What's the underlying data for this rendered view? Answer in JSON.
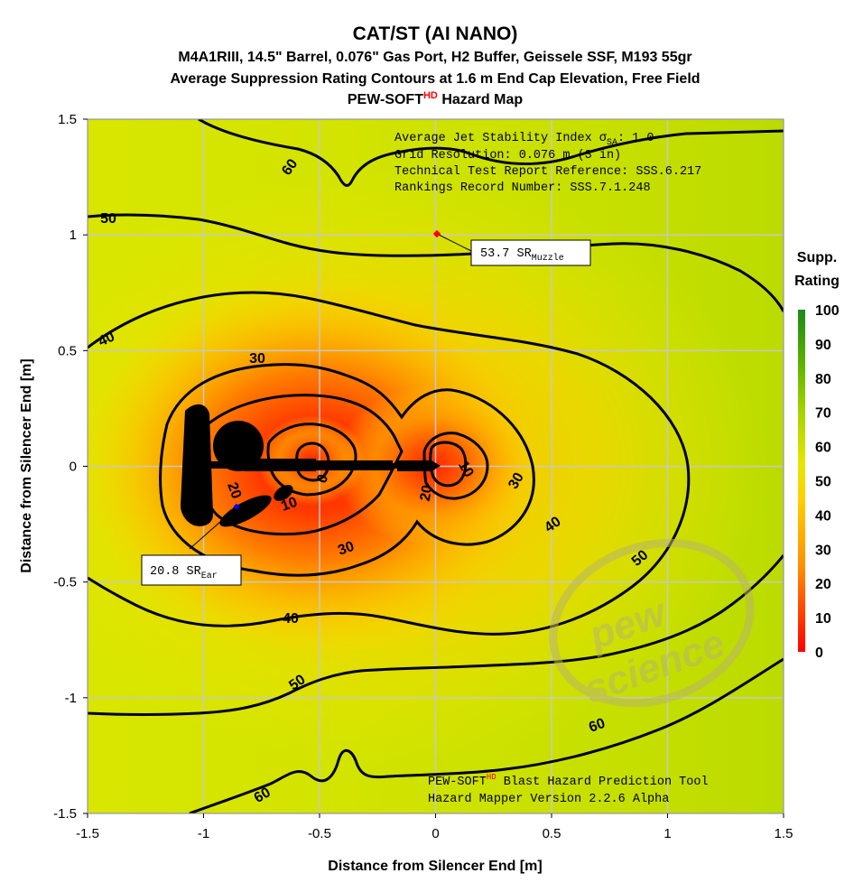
{
  "chart_data": {
    "type": "heatmap",
    "title": "CAT/ST (AI NANO)",
    "subtitle_line1": "M4A1RIII, 14.5\" Barrel, 0.076\" Gas Port, H2 Buffer, Geissele SSF, M193 55gr",
    "subtitle_line2": "Average Suppression Rating Contours at 1.6 m End Cap Elevation, Free Field",
    "subtitle_line3_main": "PEW-SOFT",
    "subtitle_line3_sup": "HD",
    "subtitle_line3_tail": " Hazard Map",
    "xlabel": "Distance from Silencer End [m]",
    "ylabel": "Distance from Silencer End [m]",
    "xlim": [
      -1.5,
      1.5
    ],
    "ylim": [
      -1.5,
      1.5
    ],
    "xticks": [
      "-1.5",
      "-1",
      "-0.5",
      "0",
      "0.5",
      "1",
      "1.5"
    ],
    "yticks": [
      "1.5",
      "1",
      "0.5",
      "0",
      "-0.5",
      "-1",
      "-1.5"
    ],
    "grid": true,
    "contour_levels": [
      "60",
      "50",
      "40",
      "30",
      "20",
      "10",
      "0"
    ],
    "colorbar": {
      "title_line1": "Supp.",
      "title_line2": "Rating",
      "min": 0,
      "max": 100,
      "ticks": [
        "100",
        "90",
        "80",
        "70",
        "60",
        "50",
        "40",
        "30",
        "20",
        "10",
        "0"
      ]
    },
    "info_lines": [
      "Average Jet Stability Index σ",
      "Grid Resolution: 0.076 m (3 in)",
      "Technical Test Report Reference: SSS.6.217",
      "Rankings Record Number: SSS.7.1.248"
    ],
    "info_sigma_sub": "SA",
    "info_sigma_tail": ": 1.0",
    "annotations": [
      {
        "name": "muzzle",
        "x": 0.0,
        "y": 1.0,
        "value": "53.7 SR",
        "sub": "Muzzle",
        "marker_color": "#ff0000"
      },
      {
        "name": "ear",
        "x": -0.86,
        "y": -0.18,
        "value": "20.8 SR",
        "sub": "Ear",
        "marker_color": "#0000ff"
      }
    ],
    "footer_line1_main": "PEW-SOFT",
    "footer_line1_sup": "HD",
    "footer_line1_tail": " Blast Hazard Prediction Tool",
    "footer_line2": "Hazard Mapper Version 2.2.6 Alpha",
    "watermark_line1": "pew",
    "watermark_line2": "science"
  }
}
